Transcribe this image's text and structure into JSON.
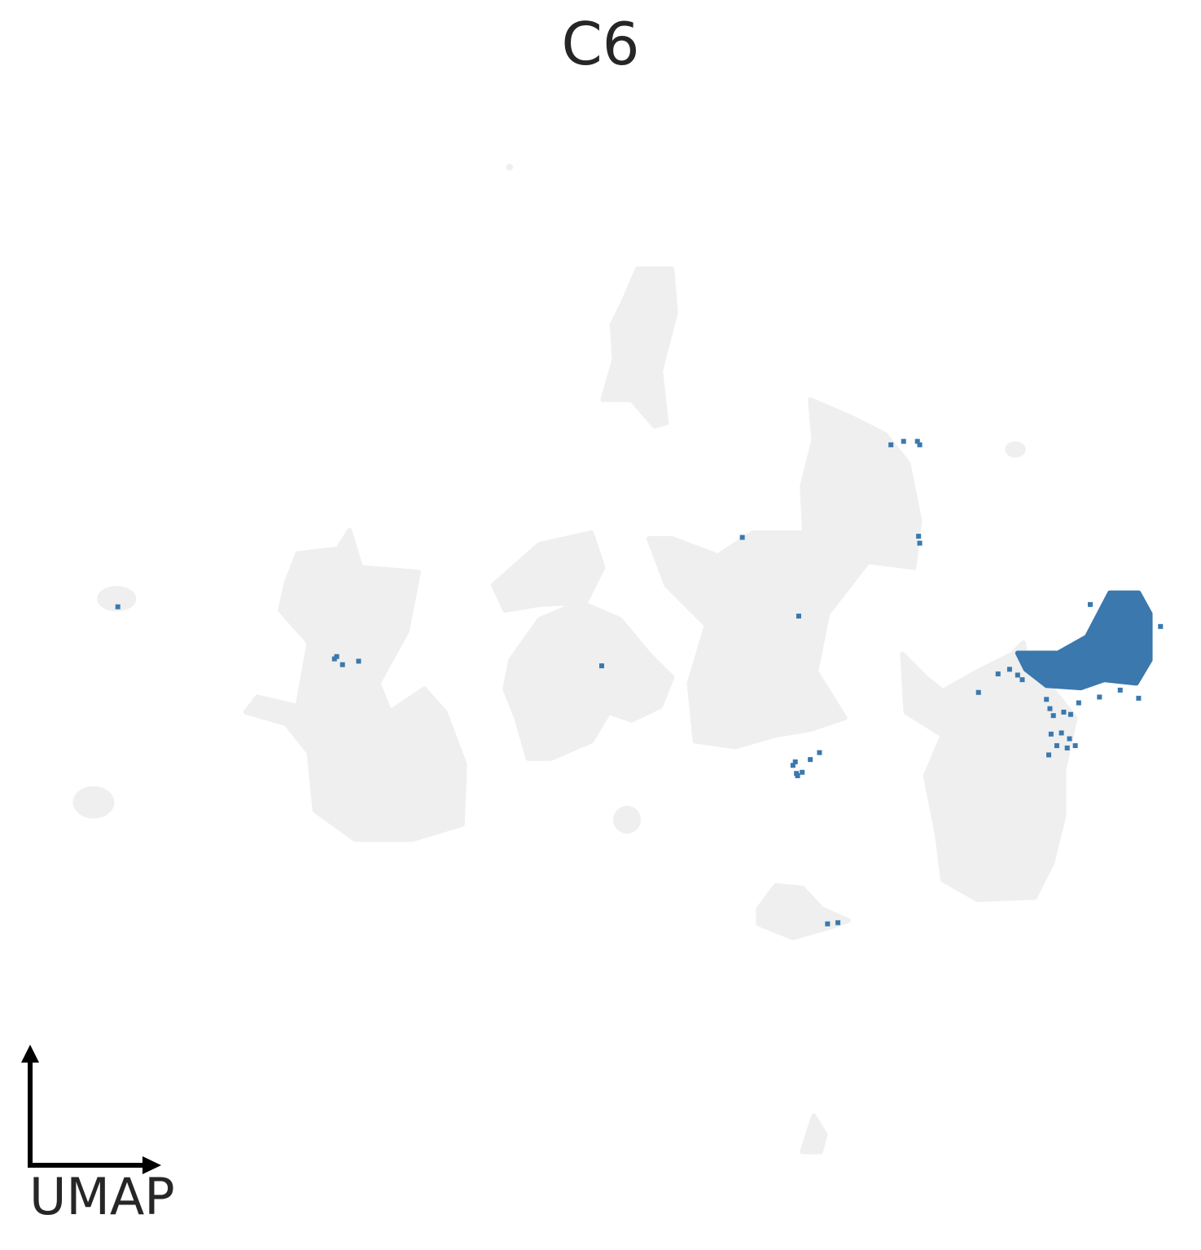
{
  "chart_data": {
    "type": "scatter",
    "title": "C6",
    "axis_label": "UMAP",
    "grid": false,
    "legend": "none",
    "colors": {
      "background_cells": "#efefef",
      "highlight_cells": "#3a78ae",
      "axis_arrows": "#000000"
    },
    "xlim": [
      0,
      100
    ],
    "ylim": [
      0,
      100
    ],
    "background_clusters": [
      {
        "name": "top-stalk",
        "shape": "poly",
        "points": [
          [
            52.5,
            83.8
          ],
          [
            55.5,
            83.8
          ],
          [
            55.8,
            80
          ],
          [
            54.5,
            75
          ],
          [
            55,
            70.5
          ],
          [
            54,
            70.2
          ],
          [
            52,
            72.5
          ],
          [
            49.5,
            72.5
          ],
          [
            50.5,
            76
          ],
          [
            50.3,
            79
          ],
          [
            51.3,
            81
          ]
        ]
      },
      {
        "name": "far-left-dot",
        "shape": "ellipse",
        "cx": 7.3,
        "cy": 55.3,
        "rx": 1.7,
        "ry": 1.1
      },
      {
        "name": "left-cluster",
        "shape": "poly",
        "points": [
          [
            27.5,
            61.2
          ],
          [
            28.5,
            58
          ],
          [
            33.5,
            57.6
          ],
          [
            32.5,
            52.5
          ],
          [
            30,
            48
          ],
          [
            31,
            45.5
          ],
          [
            34,
            47.5
          ],
          [
            35.8,
            45.5
          ],
          [
            37.5,
            41
          ],
          [
            37.3,
            35.8
          ],
          [
            33,
            34.5
          ],
          [
            28,
            34.5
          ],
          [
            24.5,
            37
          ],
          [
            24,
            42
          ],
          [
            22,
            44.5
          ],
          [
            18.5,
            45.5
          ],
          [
            19.5,
            46.8
          ],
          [
            23,
            46
          ],
          [
            24,
            51.5
          ],
          [
            21.5,
            54.3
          ],
          [
            22,
            56.6
          ],
          [
            23,
            59.2
          ],
          [
            26.5,
            59.6
          ]
        ]
      },
      {
        "name": "far-left-blob",
        "shape": "ellipse",
        "cx": 5.3,
        "cy": 37.7,
        "rx": 1.8,
        "ry": 1.4
      },
      {
        "name": "mid-cluster-upper",
        "shape": "poly",
        "points": [
          [
            40,
            56.5
          ],
          [
            44,
            60
          ],
          [
            48.5,
            61
          ],
          [
            49.5,
            58
          ],
          [
            48,
            55
          ],
          [
            44,
            54.8
          ],
          [
            41,
            54.3
          ]
        ]
      },
      {
        "name": "mid-cluster",
        "shape": "poly",
        "points": [
          [
            41.5,
            50
          ],
          [
            44,
            53.5
          ],
          [
            47.5,
            55
          ],
          [
            51,
            53.5
          ],
          [
            53.5,
            50.5
          ],
          [
            55.5,
            48.5
          ],
          [
            54.5,
            46
          ],
          [
            52,
            44.8
          ],
          [
            50,
            45.5
          ],
          [
            48.5,
            43
          ],
          [
            45,
            41.5
          ],
          [
            43,
            41.5
          ],
          [
            42,
            45
          ],
          [
            41,
            47.5
          ]
        ]
      },
      {
        "name": "small-center-blob",
        "shape": "ellipse",
        "cx": 51.6,
        "cy": 36.2,
        "rx": 1.2,
        "ry": 1.2
      },
      {
        "name": "central-branch-cluster",
        "shape": "poly",
        "points": [
          [
            67.5,
            72.5
          ],
          [
            71,
            71
          ],
          [
            74,
            69.5
          ],
          [
            76,
            67
          ],
          [
            77,
            62
          ],
          [
            76.5,
            58
          ],
          [
            72.5,
            58.5
          ],
          [
            69,
            54
          ],
          [
            68,
            49
          ],
          [
            70.5,
            45
          ],
          [
            67.5,
            44
          ],
          [
            64.5,
            43.5
          ],
          [
            61,
            42.5
          ],
          [
            57.5,
            43
          ],
          [
            57,
            48
          ],
          [
            58.5,
            53
          ],
          [
            55,
            56.5
          ],
          [
            53.5,
            60.5
          ],
          [
            55.5,
            60.5
          ],
          [
            59.5,
            59
          ],
          [
            62.5,
            61
          ],
          [
            67,
            61
          ],
          [
            66.8,
            65
          ],
          [
            67.8,
            69
          ]
        ]
      },
      {
        "name": "bottom-center-blob",
        "shape": "poly",
        "points": [
          [
            63,
            28.5
          ],
          [
            64.5,
            30.5
          ],
          [
            66.8,
            30.3
          ],
          [
            68.5,
            28.5
          ],
          [
            70.8,
            27.5
          ],
          [
            69.5,
            27
          ],
          [
            66,
            26
          ],
          [
            63,
            27.2
          ]
        ]
      },
      {
        "name": "right-cluster",
        "shape": "poly",
        "points": [
          [
            75.5,
            50.5
          ],
          [
            77.5,
            48.5
          ],
          [
            79,
            47.3
          ],
          [
            82,
            49
          ],
          [
            85,
            50.5
          ],
          [
            86,
            51.5
          ],
          [
            86.5,
            48.5
          ],
          [
            88.5,
            47.5
          ],
          [
            90.5,
            45
          ],
          [
            89.5,
            40.5
          ],
          [
            89.5,
            36.5
          ],
          [
            88.5,
            32.5
          ],
          [
            87,
            29.5
          ],
          [
            82,
            29.3
          ],
          [
            79,
            31
          ],
          [
            78.5,
            35
          ],
          [
            77.5,
            40
          ],
          [
            79,
            43.5
          ],
          [
            75.8,
            45.5
          ]
        ]
      },
      {
        "name": "far-right-speck",
        "shape": "ellipse",
        "cx": 85.3,
        "cy": 68.2,
        "rx": 0.9,
        "ry": 0.7
      },
      {
        "name": "bottom-tip",
        "shape": "poly",
        "points": [
          [
            66.8,
            7.5
          ],
          [
            67.8,
            10.6
          ],
          [
            68.8,
            9
          ],
          [
            68.4,
            7.5
          ]
        ]
      },
      {
        "name": "top-speck",
        "shape": "ellipse",
        "cx": 41.4,
        "cy": 92.6,
        "rx": 0.3,
        "ry": 0.3
      }
    ],
    "highlight_clusters": [
      {
        "name": "main-c6-cluster",
        "shape": "poly",
        "points": [
          [
            85.5,
            50.6
          ],
          [
            89,
            50.6
          ],
          [
            91.5,
            52
          ],
          [
            93.5,
            55.8
          ],
          [
            96,
            55.8
          ],
          [
            97,
            54
          ],
          [
            97,
            50
          ],
          [
            95.8,
            48
          ],
          [
            93,
            48.3
          ],
          [
            91,
            47.6
          ],
          [
            88,
            47.8
          ],
          [
            86.2,
            49.2
          ]
        ]
      }
    ],
    "highlight_points": [
      {
        "x": 26.2,
        "y": 50.1
      },
      {
        "x": 26.9,
        "y": 49.6
      },
      {
        "x": 28.3,
        "y": 49.9
      },
      {
        "x": 26.4,
        "y": 50.3
      },
      {
        "x": 49.4,
        "y": 49.5
      },
      {
        "x": 66.2,
        "y": 41.2
      },
      {
        "x": 66.3,
        "y": 40.2
      },
      {
        "x": 66.0,
        "y": 40.9
      },
      {
        "x": 68.3,
        "y": 42.0
      },
      {
        "x": 67.5,
        "y": 41.4
      },
      {
        "x": 66.4,
        "y": 40.0
      },
      {
        "x": 66.8,
        "y": 40.3
      },
      {
        "x": 66.5,
        "y": 53.8
      },
      {
        "x": 61.6,
        "y": 60.6
      },
      {
        "x": 74.5,
        "y": 68.6
      },
      {
        "x": 75.6,
        "y": 68.9
      },
      {
        "x": 76.8,
        "y": 68.9
      },
      {
        "x": 77.0,
        "y": 68.6
      },
      {
        "x": 77.0,
        "y": 60.1
      },
      {
        "x": 76.9,
        "y": 60.7
      },
      {
        "x": 69.0,
        "y": 27.2
      },
      {
        "x": 69.9,
        "y": 27.3
      },
      {
        "x": 7.4,
        "y": 54.6
      },
      {
        "x": 82.1,
        "y": 47.2
      },
      {
        "x": 83.8,
        "y": 48.8
      },
      {
        "x": 84.8,
        "y": 49.2
      },
      {
        "x": 85.5,
        "y": 48.7
      },
      {
        "x": 88.0,
        "y": 46.6
      },
      {
        "x": 88.3,
        "y": 45.8
      },
      {
        "x": 88.6,
        "y": 45.2
      },
      {
        "x": 89.5,
        "y": 45.5
      },
      {
        "x": 90.1,
        "y": 45.3
      },
      {
        "x": 88.4,
        "y": 43.6
      },
      {
        "x": 89.3,
        "y": 43.7
      },
      {
        "x": 90.0,
        "y": 43.2
      },
      {
        "x": 88.9,
        "y": 42.6
      },
      {
        "x": 89.8,
        "y": 42.4
      },
      {
        "x": 90.5,
        "y": 42.6
      },
      {
        "x": 88.2,
        "y": 41.8
      },
      {
        "x": 90.8,
        "y": 46.3
      },
      {
        "x": 92.6,
        "y": 46.8
      },
      {
        "x": 96.0,
        "y": 46.7
      },
      {
        "x": 94.4,
        "y": 47.4
      },
      {
        "x": 97.9,
        "y": 52.9
      },
      {
        "x": 91.8,
        "y": 54.8
      },
      {
        "x": 85.9,
        "y": 48.3
      }
    ]
  }
}
